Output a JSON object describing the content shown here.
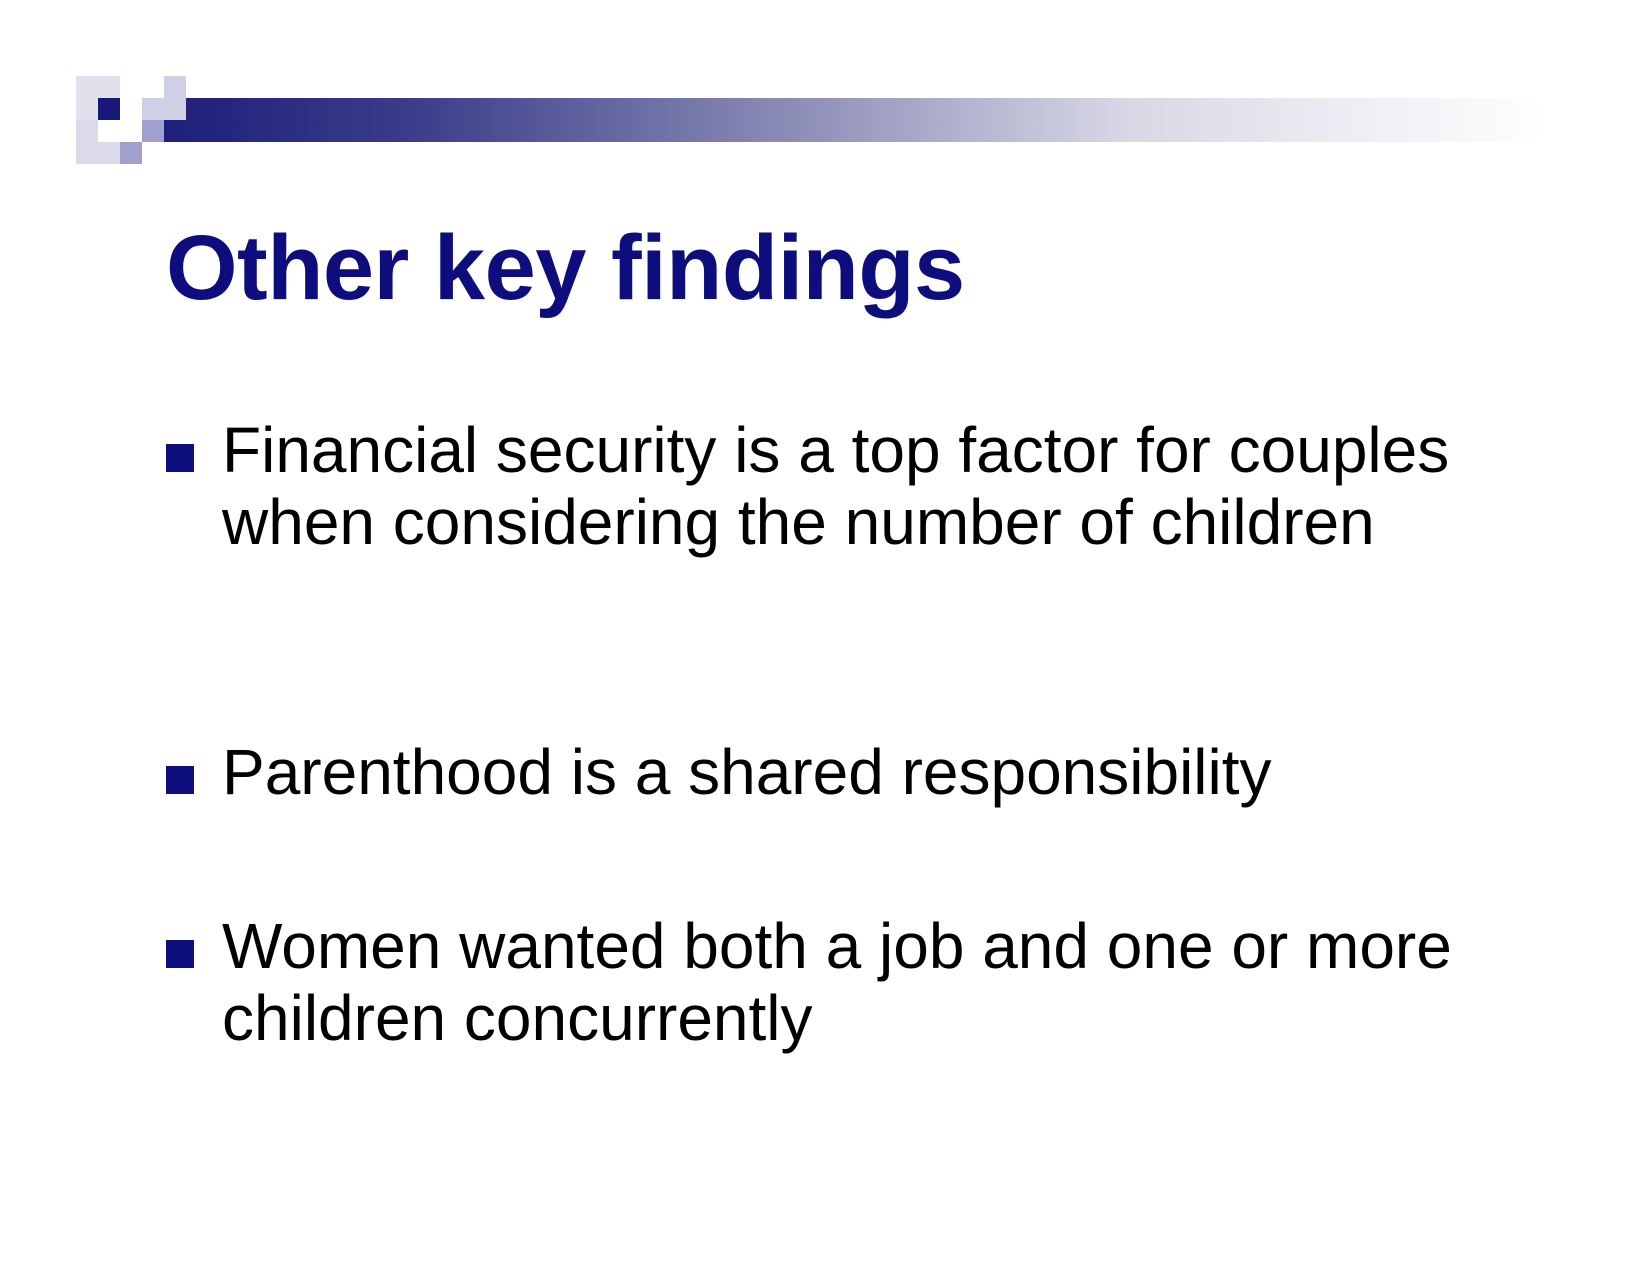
{
  "slide": {
    "title": "Other key findings",
    "bullets": [
      {
        "text": "Financial security is a top factor for couples when considering the number of children"
      },
      {
        "text": "Parenthood is a shared responsibility"
      },
      {
        "text": "Women wanted both a job and one or more children concurrently"
      }
    ]
  },
  "colors": {
    "title": "#0d0d7d",
    "bullet_marker": "#0d0d7d",
    "body_text": "#000000",
    "accent_gradient_start": "#1d1f7a",
    "accent_gradient_end": "#ffffff"
  },
  "icons": {
    "bullet": "square-bullet-icon"
  }
}
